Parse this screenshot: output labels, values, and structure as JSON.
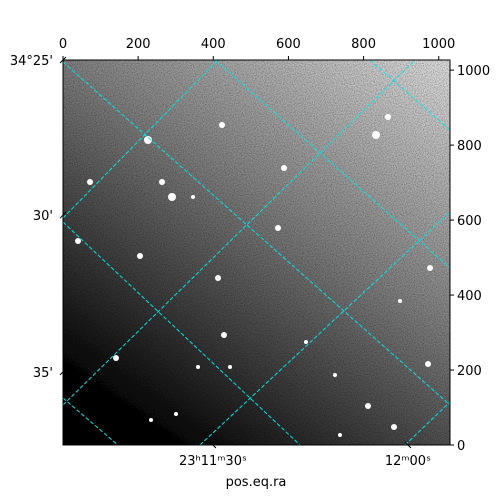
{
  "chart_data": {
    "type": "image",
    "xlabel": "pos.eq.ra",
    "xlim": [
      0,
      1030
    ],
    "xticks": [
      0,
      200,
      400,
      600,
      800,
      1000
    ],
    "ylim": [
      0,
      1027
    ],
    "yticks": [
      0,
      200,
      400,
      600,
      800,
      1000
    ],
    "left_ticks": [
      {
        "value": 1027,
        "label": "34°25'"
      },
      {
        "value": 613,
        "label": "30'"
      },
      {
        "value": 195,
        "label": "35'"
      }
    ],
    "bottom_ticks": [
      {
        "value": 399,
        "label": "23ʰ11ᵐ30ˢ"
      },
      {
        "value": 918,
        "label": "12ᵐ00ˢ"
      }
    ],
    "grid_color": "#00e5e5"
  }
}
